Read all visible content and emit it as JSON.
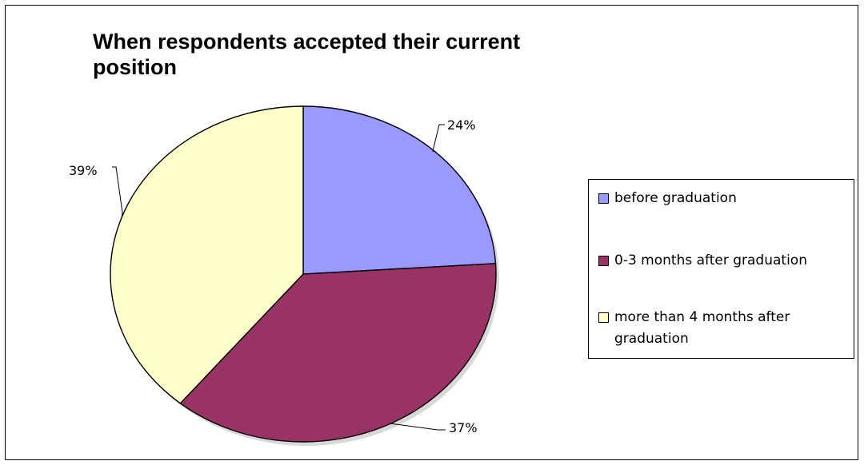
{
  "chart_data": {
    "type": "pie",
    "title": "When respondents accepted their current position",
    "categories": [
      "before graduation",
      "0-3 months after graduation",
      "more than 4 months after graduation"
    ],
    "values": [
      24,
      37,
      39
    ],
    "labels": [
      "24%",
      "37%",
      "39%"
    ],
    "colors": [
      "#9999FF",
      "#993366",
      "#FFFFCC"
    ],
    "legend_position": "right"
  }
}
